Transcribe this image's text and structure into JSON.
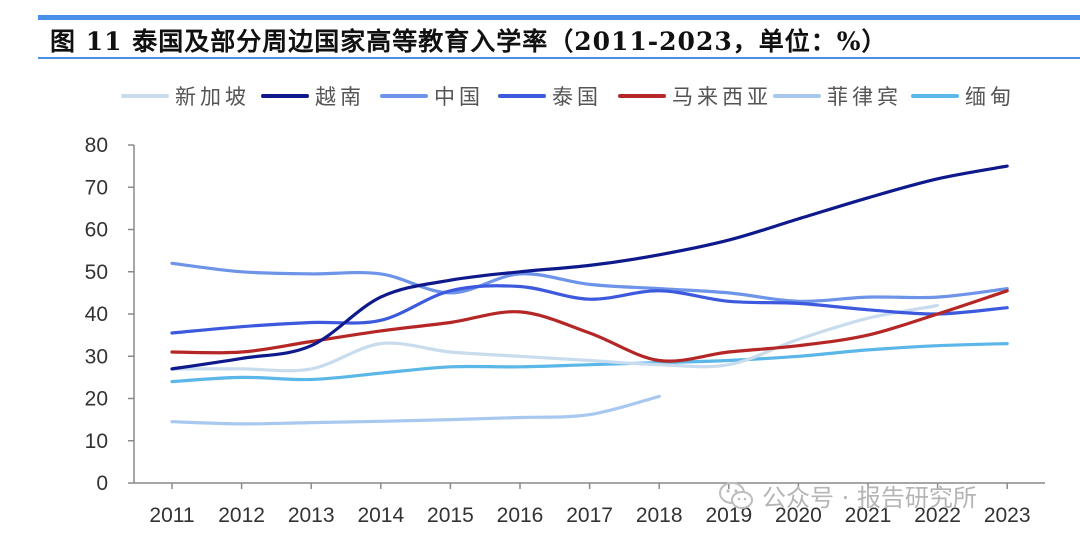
{
  "title": "图 11 泰国及部分周边国家高等教育入学率（2011-2023，单位：%）",
  "watermark": "公众号 · 报告研究所",
  "chart_data": {
    "type": "line",
    "title": "图 11 泰国及部分周边国家高等教育入学率（2011-2023，单位：%）",
    "xlabel": "",
    "ylabel": "",
    "x": [
      "2011",
      "2012",
      "2013",
      "2014",
      "2015",
      "2016",
      "2017",
      "2018",
      "2019",
      "2020",
      "2021",
      "2022",
      "2023"
    ],
    "y_ticks": [
      "0",
      "10",
      "20",
      "30",
      "40",
      "50",
      "60",
      "70",
      "80"
    ],
    "ylim": [
      0,
      80
    ],
    "grid": false,
    "legend_position": "top",
    "series": [
      {
        "name": "新加坡",
        "color": "#C8DCEE",
        "values": [
          27,
          27,
          27,
          33,
          31,
          30,
          29,
          28,
          28,
          34,
          39,
          42,
          null
        ]
      },
      {
        "name": "越南",
        "color": "#0E1A8C",
        "values": [
          27,
          29.5,
          32.5,
          44,
          48,
          50,
          51.5,
          54,
          57.5,
          62.5,
          67.5,
          72,
          75
        ]
      },
      {
        "name": "中国",
        "color": "#6D94E8",
        "values": [
          52,
          50,
          49.5,
          49.5,
          45,
          49.5,
          47,
          46,
          45,
          43,
          44,
          44,
          46
        ]
      },
      {
        "name": "泰国",
        "color": "#3D59DD",
        "values": [
          35.5,
          37,
          38,
          38.5,
          45.5,
          46.5,
          43.5,
          45.5,
          43,
          42.5,
          41,
          40,
          41.5
        ]
      },
      {
        "name": "马来西亚",
        "color": "#B52727",
        "values": [
          31,
          31,
          33.5,
          36,
          38,
          40.5,
          35.5,
          29,
          31,
          32.5,
          35,
          40,
          45.5
        ]
      },
      {
        "name": "菲律宾",
        "color": "#A9C8F0",
        "values": [
          14.5,
          14,
          14.3,
          14.6,
          15,
          15.5,
          16.2,
          20.5,
          null,
          null,
          null,
          null,
          null
        ]
      },
      {
        "name": "缅甸",
        "color": "#5BB7E8",
        "values": [
          24,
          25,
          24.5,
          26,
          27.5,
          27.5,
          28,
          28.5,
          29,
          30,
          31.5,
          32.5,
          33
        ]
      }
    ]
  }
}
